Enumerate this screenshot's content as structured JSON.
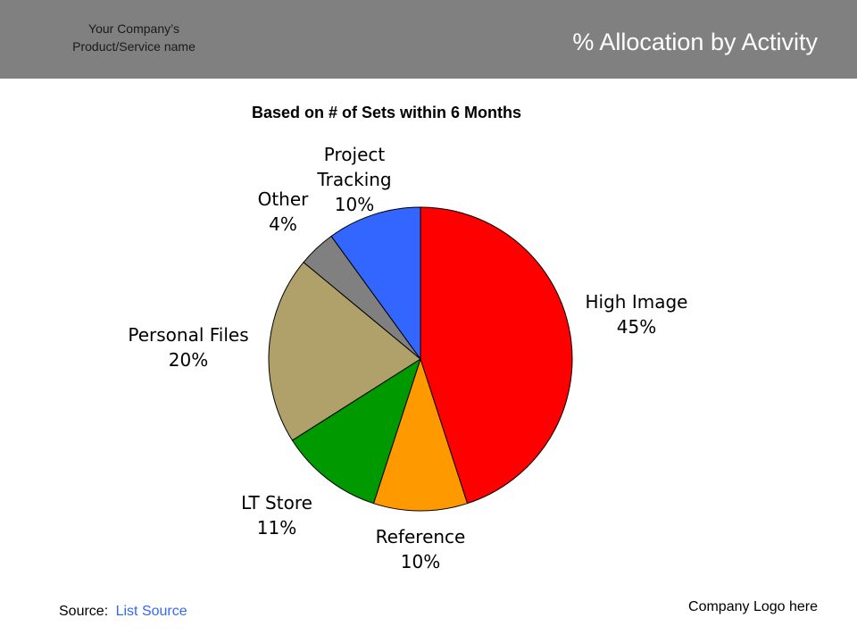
{
  "header": {
    "company_line1": "Your Company’s",
    "company_line2": "Product/Service name",
    "title": "% Allocation by Activity"
  },
  "chart_data": {
    "type": "pie",
    "title": "Based on # of Sets within 6 Months",
    "slices": [
      {
        "label_lines": [
          "High Image"
        ],
        "value": 45,
        "value_label": "45%",
        "color": "#ff0000"
      },
      {
        "label_lines": [
          "Reference"
        ],
        "value": 10,
        "value_label": "10%",
        "color": "#ff9900"
      },
      {
        "label_lines": [
          "LT Store"
        ],
        "value": 11,
        "value_label": "11%",
        "color": "#009900"
      },
      {
        "label_lines": [
          "Personal Files"
        ],
        "value": 20,
        "value_label": "20%",
        "color": "#b0a06a"
      },
      {
        "label_lines": [
          "Other"
        ],
        "value": 4,
        "value_label": "4%",
        "color": "#808080"
      },
      {
        "label_lines": [
          "Project",
          "Tracking"
        ],
        "value": 10,
        "value_label": "10%",
        "color": "#3366ff"
      }
    ],
    "start": "12 o'clock",
    "direction": "clockwise",
    "legend": "none"
  },
  "footer": {
    "source_label": "Source:",
    "source_value": "List Source",
    "logo_text": "Company Logo here"
  }
}
